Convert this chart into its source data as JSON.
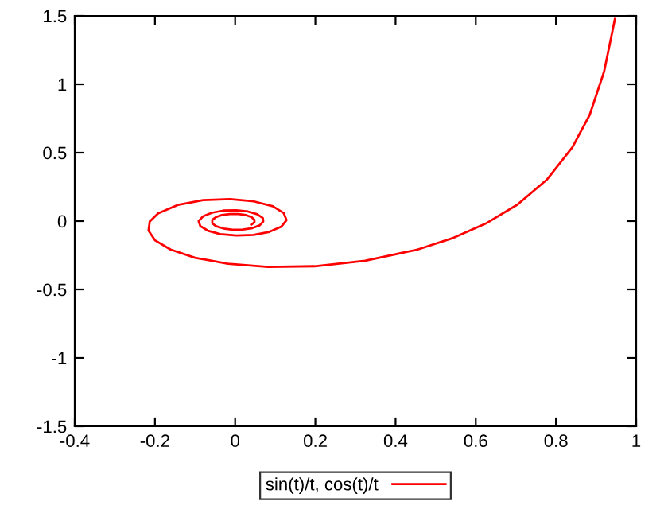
{
  "chart_data": {
    "type": "line",
    "x": [
      0.947,
      0.92,
      0.884,
      0.841,
      0.777,
      0.704,
      0.625,
      0.541,
      0.455,
      0.324,
      0.198,
      0.082,
      -0.018,
      -0.1,
      -0.161,
      -0.2,
      -0.216,
      -0.213,
      -0.192,
      -0.143,
      -0.08,
      -0.013,
      0.047,
      0.094,
      0.121,
      0.128,
      0.115,
      0.085,
      0.046,
      0.003,
      -0.037,
      -0.068,
      -0.087,
      -0.091,
      -0.08,
      -0.058,
      -0.029,
      0.003,
      0.032,
      0.055,
      0.069,
      0.07,
      0.061,
      0.043,
      0.019,
      -0.006,
      -0.029,
      -0.048,
      -0.057,
      -0.057,
      -0.048,
      -0.033,
      -0.013,
      0.008,
      0.027,
      0.041,
      0.048,
      0.048,
      0.04
    ],
    "series": [
      {
        "name": "sin(t)/t, cos(t)/t",
        "color": "#ff0000",
        "values": [
          1.477,
          1.093,
          0.776,
          0.54,
          0.302,
          0.121,
          -0.018,
          -0.126,
          -0.208,
          -0.29,
          -0.33,
          -0.335,
          -0.312,
          -0.268,
          -0.208,
          -0.14,
          -0.07,
          -0.003,
          0.057,
          0.118,
          0.153,
          0.161,
          0.144,
          0.108,
          0.059,
          0.007,
          -0.041,
          -0.079,
          -0.101,
          -0.106,
          -0.095,
          -0.07,
          -0.036,
          0.0,
          0.035,
          0.061,
          0.077,
          0.079,
          0.07,
          0.05,
          0.023,
          -0.003,
          -0.031,
          -0.051,
          -0.062,
          -0.063,
          -0.054,
          -0.037,
          -0.016,
          0.01,
          0.029,
          0.044,
          0.052,
          0.052,
          0.044,
          0.029,
          0.01,
          -0.01,
          -0.026
        ]
      }
    ],
    "xlim": [
      -0.4,
      1
    ],
    "xticks": [
      -0.4,
      -0.2,
      0,
      0.2,
      0.4,
      0.6,
      0.8,
      1
    ],
    "ylim": [
      -1.5,
      1.5
    ],
    "yticks": [
      -1.5,
      -1,
      -0.5,
      0,
      0.5,
      1,
      1.5
    ],
    "legend": "bottom",
    "grid": false,
    "marker": "none",
    "line_style": "solid"
  }
}
